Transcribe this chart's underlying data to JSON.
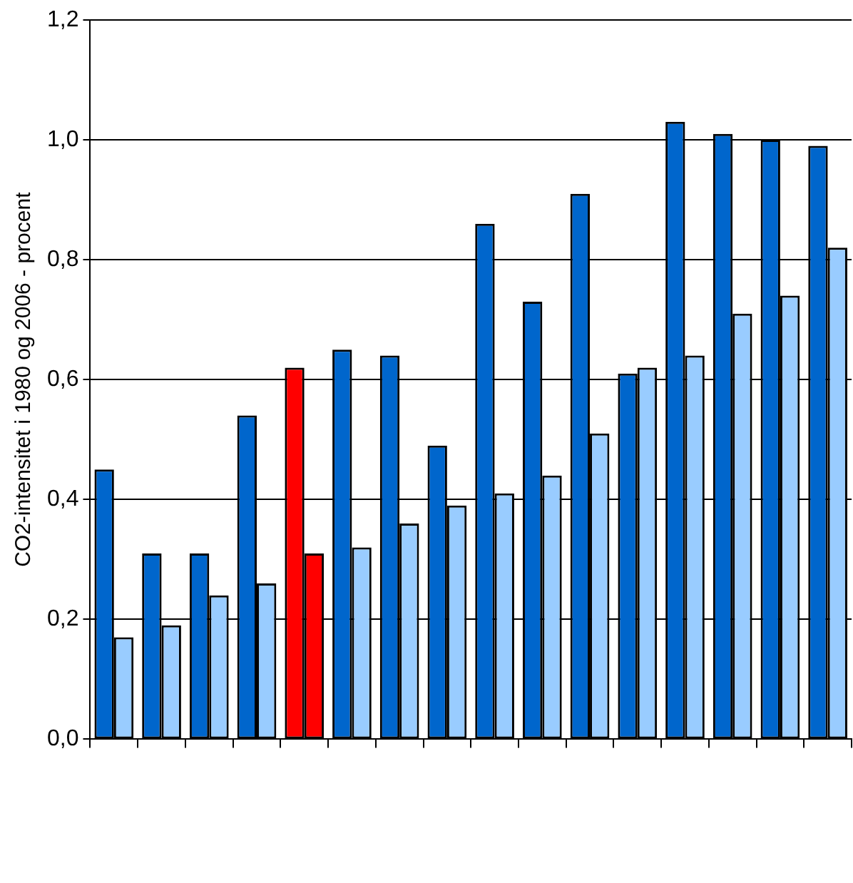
{
  "chart_data": {
    "type": "bar",
    "ylabel": "CO2-intensitet i 1980 og 2006 - procent",
    "categories": [
      null,
      null,
      null,
      null,
      null,
      null,
      null,
      null,
      null,
      null,
      null,
      null,
      null,
      null,
      null,
      null
    ],
    "series": [
      {
        "color": "#0066cc",
        "colors": [
          null,
          null,
          null,
          null,
          "#ff0000",
          null,
          null,
          null,
          null,
          null,
          null,
          null,
          null,
          null,
          null,
          null
        ],
        "values": [
          0.45,
          0.31,
          0.31,
          0.54,
          0.62,
          0.65,
          0.64,
          0.49,
          0.86,
          0.73,
          0.91,
          0.61,
          1.03,
          1.01,
          1.0,
          0.99
        ]
      },
      {
        "color": "#99ccff",
        "colors": [
          null,
          null,
          null,
          null,
          "#ff0000",
          null,
          null,
          null,
          null,
          null,
          null,
          null,
          null,
          null,
          null,
          null
        ],
        "values": [
          0.17,
          0.19,
          0.24,
          0.26,
          0.31,
          0.32,
          0.36,
          0.39,
          0.41,
          0.44,
          0.51,
          0.62,
          0.64,
          0.71,
          0.74,
          0.82
        ]
      }
    ],
    "ylim": [
      0,
      1.2
    ],
    "yticks": [
      {
        "value": 0,
        "label": "0,0"
      },
      {
        "value": 0.2,
        "label": "0,2"
      },
      {
        "value": 0.4,
        "label": "0,4"
      },
      {
        "value": 0.6,
        "label": "0,6"
      },
      {
        "value": 0.8,
        "label": "0,8"
      },
      {
        "value": 1.0,
        "label": "1,0"
      },
      {
        "value": 1.2,
        "label": "1,2"
      }
    ],
    "grid": "y",
    "legend": false
  }
}
